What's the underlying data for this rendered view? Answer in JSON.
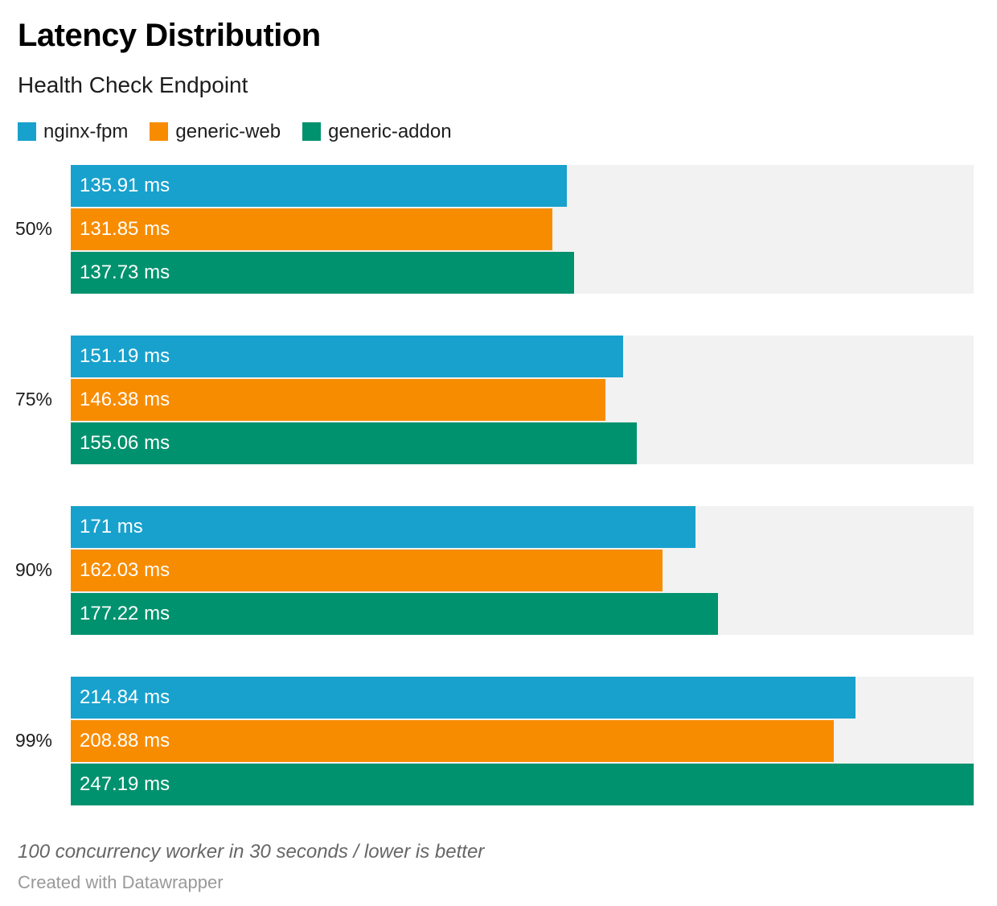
{
  "footnote": "100 concurrency worker in 30 seconds / lower is better",
  "credit": "Created with Datawrapper",
  "colors": {
    "track": "#f2f2f2",
    "bar_label_text": "#ffffff"
  },
  "chart_data": {
    "type": "bar",
    "orientation": "horizontal",
    "title": "Latency Distribution",
    "subtitle": "Health Check Endpoint",
    "unit": "ms",
    "value_axis_min": 0,
    "value_axis_max": 247.19,
    "grid": false,
    "legend_position": "top",
    "track_color": "#f2f2f2",
    "categories": [
      "50%",
      "75%",
      "90%",
      "99%"
    ],
    "series": [
      {
        "name": "nginx-fpm",
        "color": "#18a1cd",
        "values": [
          135.91,
          151.19,
          171,
          214.84
        ],
        "value_labels": [
          "135.91 ms",
          "151.19 ms",
          "171 ms",
          "214.84 ms"
        ]
      },
      {
        "name": "generic-web",
        "color": "#f88c00",
        "values": [
          131.85,
          146.38,
          162.03,
          208.88
        ],
        "value_labels": [
          "131.85 ms",
          "146.38 ms",
          "162.03 ms",
          "208.88 ms"
        ]
      },
      {
        "name": "generic-addon",
        "color": "#00926e",
        "values": [
          137.73,
          155.06,
          177.22,
          247.19
        ],
        "value_labels": [
          "137.73 ms",
          "155.06 ms",
          "177.22 ms",
          "247.19 ms"
        ]
      }
    ]
  }
}
